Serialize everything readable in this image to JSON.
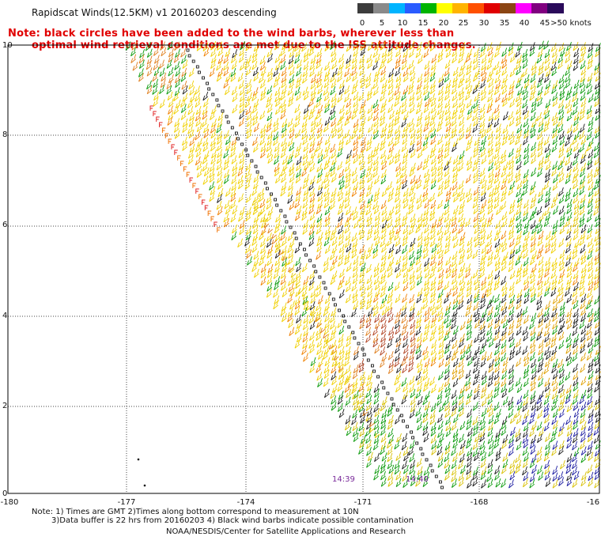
{
  "title": "Rapidscat Winds(12.5KM) v1 20160203 descending",
  "note_line1": "Note: black circles have been added to the wind barbs, wherever less than",
  "note_line2": "optimal wind retrieval conditions are met due to the ISS attitude changes.",
  "legend": {
    "labels": [
      "0",
      "5",
      "10",
      "15",
      "20",
      "25",
      "30",
      "35",
      "40",
      "45",
      ">50 knots"
    ],
    "colors": [
      "#3c3c3c",
      "#8a8a8a",
      "#00b4ff",
      "#2a5cff",
      "#00b400",
      "#ffff00",
      "#ffb400",
      "#ff5000",
      "#e00000",
      "#8b4513",
      "#ff00ff",
      "#800080",
      "#2a0a5a"
    ]
  },
  "axes": {
    "lat_labels": [
      "10",
      "8",
      "6",
      "4",
      "2",
      "0"
    ],
    "lon_labels": [
      "-180",
      "-177",
      "-174",
      "-171",
      "-168",
      "-16"
    ]
  },
  "times": [
    "14:39",
    "14:40"
  ],
  "footnote_line1": "Note: 1) Times are GMT 2)Times along bottom correspond to measurement at 10N",
  "footnote_line2": "3)Data buffer is 22 hrs from 20160203 4) Black wind barbs indicate possible contamination",
  "credit": "NOAA/NESDIS/Center for Satellite Applications and Research"
}
